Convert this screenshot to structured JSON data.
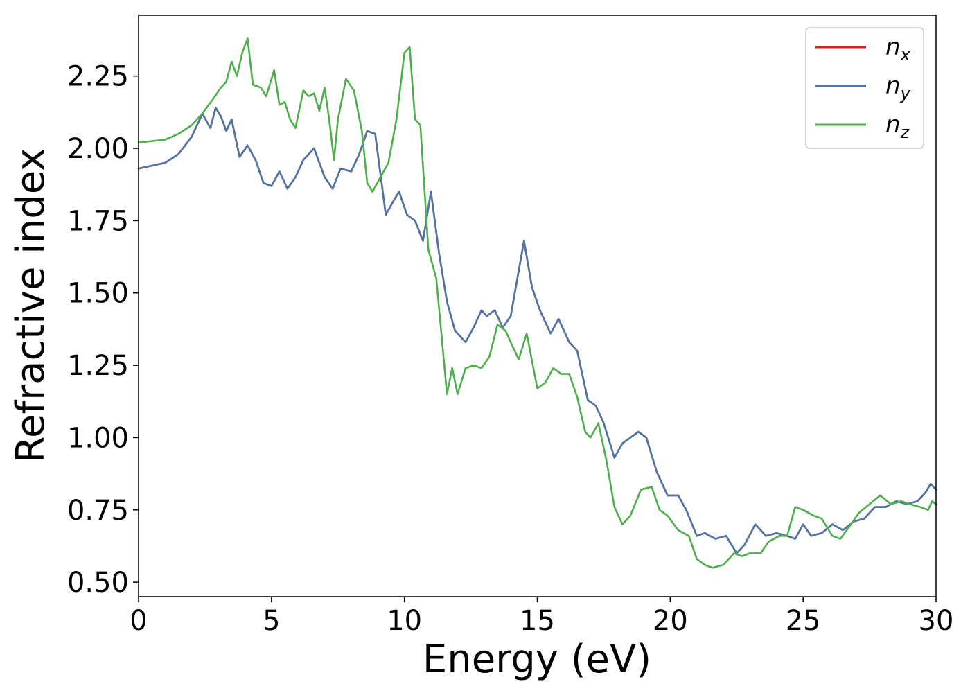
{
  "chart_data": {
    "type": "line",
    "title": "",
    "xlabel": "Energy (eV)",
    "ylabel": "Refractive index",
    "xlim": [
      0,
      30
    ],
    "ylim": [
      0.45,
      2.46
    ],
    "xticks": [
      0,
      5,
      10,
      15,
      20,
      25,
      30
    ],
    "xtick_labels": [
      "0",
      "5",
      "10",
      "15",
      "20",
      "25",
      "30"
    ],
    "yticks": [
      0.5,
      0.75,
      1.0,
      1.25,
      1.5,
      1.75,
      2.0,
      2.25
    ],
    "ytick_labels": [
      "0.50",
      "0.75",
      "1.00",
      "1.25",
      "1.50",
      "1.75",
      "2.00",
      "2.25"
    ],
    "grid": false,
    "legend_position": "top-right",
    "legend": [
      {
        "base": "n",
        "sub": "x",
        "color": "#e41a1c"
      },
      {
        "base": "n",
        "sub": "y",
        "color": "#4a76a8"
      },
      {
        "base": "n",
        "sub": "z",
        "color": "#4daf4a"
      }
    ],
    "series": [
      {
        "name": "n_x",
        "color": "#e41a1c",
        "x": [
          0,
          1,
          1.5,
          2,
          2.4,
          2.7,
          2.9,
          3.1,
          3.3,
          3.5,
          3.8,
          4.1,
          4.4,
          4.7,
          5.0,
          5.3,
          5.6,
          5.9,
          6.2,
          6.6,
          7.0,
          7.3,
          7.6,
          8.0,
          8.3,
          8.6,
          8.9,
          9.3,
          9.6,
          9.8,
          10.1,
          10.4,
          10.7,
          11.0,
          11.3,
          11.6,
          11.9,
          12.3,
          12.6,
          12.9,
          13.1,
          13.4,
          13.7,
          14.0,
          14.5,
          14.8,
          15.1,
          15.5,
          15.8,
          16.2,
          16.5,
          16.9,
          17.2,
          17.5,
          17.9,
          18.2,
          18.5,
          18.8,
          19.1,
          19.5,
          19.9,
          20.3,
          20.6,
          21.0,
          21.3,
          21.7,
          22.1,
          22.5,
          22.8,
          23.2,
          23.6,
          24.0,
          24.4,
          24.7,
          25.0,
          25.3,
          25.7,
          26.1,
          26.5,
          26.9,
          27.3,
          27.7,
          28.1,
          28.5,
          28.9,
          29.3,
          29.6,
          29.8,
          30
        ],
        "y": [
          1.93,
          1.95,
          1.98,
          2.04,
          2.12,
          2.07,
          2.14,
          2.11,
          2.06,
          2.1,
          1.97,
          2.01,
          1.96,
          1.88,
          1.87,
          1.92,
          1.86,
          1.9,
          1.96,
          2.0,
          1.9,
          1.86,
          1.93,
          1.92,
          1.98,
          2.06,
          2.05,
          1.77,
          1.82,
          1.85,
          1.77,
          1.75,
          1.68,
          1.85,
          1.64,
          1.47,
          1.37,
          1.33,
          1.38,
          1.44,
          1.42,
          1.44,
          1.38,
          1.42,
          1.68,
          1.52,
          1.44,
          1.36,
          1.41,
          1.33,
          1.3,
          1.13,
          1.11,
          1.05,
          0.93,
          0.98,
          1.0,
          1.02,
          1.0,
          0.88,
          0.8,
          0.8,
          0.75,
          0.66,
          0.67,
          0.65,
          0.66,
          0.6,
          0.63,
          0.7,
          0.66,
          0.67,
          0.66,
          0.65,
          0.7,
          0.66,
          0.67,
          0.7,
          0.68,
          0.71,
          0.72,
          0.76,
          0.76,
          0.78,
          0.77,
          0.78,
          0.81,
          0.84,
          0.82
        ]
      },
      {
        "name": "n_y",
        "color": "#4a76a8",
        "x": [
          0,
          1,
          1.5,
          2,
          2.4,
          2.7,
          2.9,
          3.1,
          3.3,
          3.5,
          3.8,
          4.1,
          4.4,
          4.7,
          5.0,
          5.3,
          5.6,
          5.9,
          6.2,
          6.6,
          7.0,
          7.3,
          7.6,
          8.0,
          8.3,
          8.6,
          8.9,
          9.3,
          9.6,
          9.8,
          10.1,
          10.4,
          10.7,
          11.0,
          11.3,
          11.6,
          11.9,
          12.3,
          12.6,
          12.9,
          13.1,
          13.4,
          13.7,
          14.0,
          14.5,
          14.8,
          15.1,
          15.5,
          15.8,
          16.2,
          16.5,
          16.9,
          17.2,
          17.5,
          17.9,
          18.2,
          18.5,
          18.8,
          19.1,
          19.5,
          19.9,
          20.3,
          20.6,
          21.0,
          21.3,
          21.7,
          22.1,
          22.5,
          22.8,
          23.2,
          23.6,
          24.0,
          24.4,
          24.7,
          25.0,
          25.3,
          25.7,
          26.1,
          26.5,
          26.9,
          27.3,
          27.7,
          28.1,
          28.5,
          28.9,
          29.3,
          29.6,
          29.8,
          30
        ],
        "y": [
          1.93,
          1.95,
          1.98,
          2.04,
          2.12,
          2.07,
          2.14,
          2.11,
          2.06,
          2.1,
          1.97,
          2.01,
          1.96,
          1.88,
          1.87,
          1.92,
          1.86,
          1.9,
          1.96,
          2.0,
          1.9,
          1.86,
          1.93,
          1.92,
          1.98,
          2.06,
          2.05,
          1.77,
          1.82,
          1.85,
          1.77,
          1.75,
          1.68,
          1.85,
          1.64,
          1.47,
          1.37,
          1.33,
          1.38,
          1.44,
          1.42,
          1.44,
          1.38,
          1.42,
          1.68,
          1.52,
          1.44,
          1.36,
          1.41,
          1.33,
          1.3,
          1.13,
          1.11,
          1.05,
          0.93,
          0.98,
          1.0,
          1.02,
          1.0,
          0.88,
          0.8,
          0.8,
          0.75,
          0.66,
          0.67,
          0.65,
          0.66,
          0.6,
          0.63,
          0.7,
          0.66,
          0.67,
          0.66,
          0.65,
          0.7,
          0.66,
          0.67,
          0.7,
          0.68,
          0.71,
          0.72,
          0.76,
          0.76,
          0.78,
          0.77,
          0.78,
          0.81,
          0.84,
          0.82
        ]
      },
      {
        "name": "n_z",
        "color": "#4daf4a",
        "x": [
          0,
          1,
          1.5,
          2,
          2.4,
          2.8,
          3.1,
          3.3,
          3.5,
          3.7,
          3.9,
          4.1,
          4.3,
          4.6,
          4.8,
          5.1,
          5.3,
          5.5,
          5.7,
          5.9,
          6.2,
          6.4,
          6.6,
          6.8,
          7.0,
          7.2,
          7.35,
          7.5,
          7.8,
          8.1,
          8.4,
          8.6,
          8.8,
          9.1,
          9.4,
          9.7,
          10.0,
          10.2,
          10.4,
          10.6,
          10.9,
          11.2,
          11.4,
          11.6,
          11.8,
          12.0,
          12.3,
          12.6,
          12.9,
          13.2,
          13.5,
          13.8,
          14.0,
          14.3,
          14.6,
          15.0,
          15.3,
          15.6,
          15.9,
          16.2,
          16.5,
          16.8,
          17.0,
          17.3,
          17.6,
          17.9,
          18.2,
          18.5,
          18.9,
          19.3,
          19.6,
          19.9,
          20.3,
          20.7,
          21.0,
          21.3,
          21.6,
          22.0,
          22.4,
          22.7,
          23.0,
          23.4,
          23.7,
          24.1,
          24.4,
          24.7,
          25.0,
          25.4,
          25.7,
          26.1,
          26.4,
          26.8,
          27.1,
          27.5,
          27.9,
          28.3,
          28.7,
          29.0,
          29.4,
          29.7,
          29.85,
          30
        ],
        "y": [
          2.02,
          2.03,
          2.05,
          2.08,
          2.12,
          2.17,
          2.21,
          2.23,
          2.3,
          2.25,
          2.33,
          2.38,
          2.22,
          2.21,
          2.18,
          2.27,
          2.15,
          2.16,
          2.1,
          2.07,
          2.2,
          2.18,
          2.19,
          2.13,
          2.21,
          2.08,
          1.96,
          2.1,
          2.24,
          2.2,
          2.06,
          1.88,
          1.85,
          1.9,
          1.95,
          2.1,
          2.33,
          2.35,
          2.1,
          2.08,
          1.65,
          1.55,
          1.35,
          1.15,
          1.24,
          1.15,
          1.24,
          1.25,
          1.24,
          1.28,
          1.39,
          1.37,
          1.33,
          1.27,
          1.36,
          1.17,
          1.19,
          1.24,
          1.22,
          1.22,
          1.14,
          1.02,
          1.0,
          1.05,
          0.92,
          0.76,
          0.7,
          0.73,
          0.82,
          0.83,
          0.75,
          0.73,
          0.68,
          0.66,
          0.58,
          0.56,
          0.55,
          0.56,
          0.6,
          0.59,
          0.6,
          0.6,
          0.64,
          0.66,
          0.66,
          0.76,
          0.75,
          0.73,
          0.72,
          0.66,
          0.65,
          0.7,
          0.74,
          0.77,
          0.8,
          0.77,
          0.78,
          0.77,
          0.76,
          0.75,
          0.78,
          0.77
        ]
      }
    ]
  }
}
